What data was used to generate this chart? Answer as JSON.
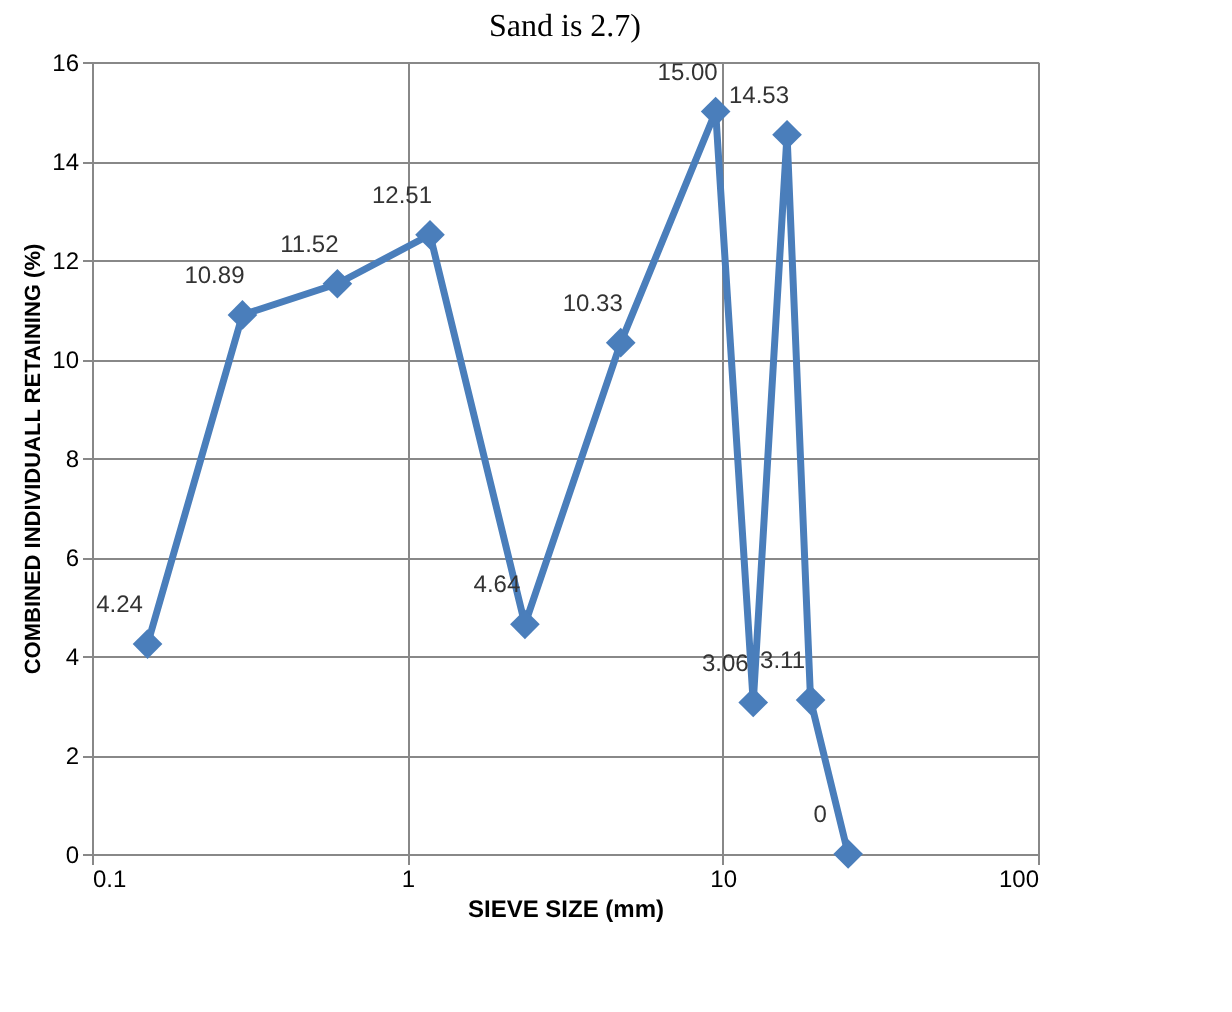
{
  "chart_data": {
    "type": "line",
    "title": "Sand is 2.7)",
    "xlabel": "SIEVE SIZE (mm)",
    "ylabel": "COMBINED INDIVIDUALL RETAINING (%)",
    "x": [
      0.15,
      0.3,
      0.6,
      1.18,
      2.36,
      4.75,
      9.5,
      12.5,
      16,
      19,
      25
    ],
    "series": [
      {
        "color": "#4a7ebb",
        "values": [
          4.24,
          10.89,
          11.52,
          12.51,
          4.64,
          10.33,
          15.0,
          3.06,
          14.53,
          3.11,
          0
        ],
        "value_labels": [
          "4.24",
          "10.89",
          "11.52",
          "12.51",
          "4.64",
          "10.33",
          "15.00",
          "3.06",
          "14.53",
          "3.11",
          "0"
        ]
      }
    ],
    "log": "x",
    "xlim": [
      0.1,
      100
    ],
    "xticks": [
      0.1,
      1,
      10,
      100
    ],
    "ylim": [
      0,
      16
    ],
    "yticks": [
      0,
      2,
      4,
      6,
      8,
      10,
      12,
      14,
      16
    ],
    "grid": true,
    "marker": "diamond",
    "line_style": "solid"
  }
}
